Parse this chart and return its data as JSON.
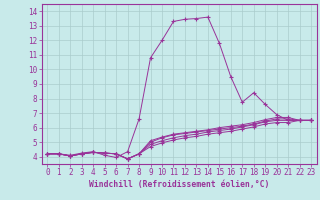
{
  "xlabel": "Windchill (Refroidissement éolien,°C)",
  "bg_color": "#c8eaea",
  "line_color": "#993399",
  "grid_color": "#aacccc",
  "xlim": [
    -0.5,
    23.5
  ],
  "ylim": [
    3.5,
    14.5
  ],
  "yticks": [
    4,
    5,
    6,
    7,
    8,
    9,
    10,
    11,
    12,
    13,
    14
  ],
  "xticks": [
    0,
    1,
    2,
    3,
    4,
    5,
    6,
    7,
    8,
    9,
    10,
    11,
    12,
    13,
    14,
    15,
    16,
    17,
    18,
    19,
    20,
    21,
    22,
    23
  ],
  "lines": [
    {
      "x": [
        0,
        1,
        2,
        3,
        4,
        5,
        6,
        7,
        8,
        9,
        10,
        11,
        12,
        13,
        14,
        15,
        16,
        17,
        18,
        19,
        20,
        21,
        22,
        23
      ],
      "y": [
        4.2,
        4.2,
        4.1,
        4.25,
        4.35,
        4.1,
        3.95,
        4.35,
        6.6,
        10.8,
        12.0,
        13.3,
        13.45,
        13.5,
        13.6,
        11.8,
        9.5,
        7.75,
        8.4,
        7.6,
        6.9,
        6.5,
        6.5,
        6.5
      ]
    },
    {
      "x": [
        0,
        1,
        2,
        3,
        4,
        5,
        6,
        7,
        8,
        9,
        10,
        11,
        12,
        13,
        14,
        15,
        16,
        17,
        18,
        19,
        20,
        21,
        22,
        23
      ],
      "y": [
        4.2,
        4.2,
        4.05,
        4.2,
        4.3,
        4.25,
        4.2,
        3.85,
        4.2,
        5.1,
        5.35,
        5.55,
        5.65,
        5.75,
        5.85,
        6.0,
        6.1,
        6.2,
        6.35,
        6.55,
        6.7,
        6.7,
        6.5,
        6.5
      ]
    },
    {
      "x": [
        0,
        1,
        2,
        3,
        4,
        5,
        6,
        7,
        8,
        9,
        10,
        11,
        12,
        13,
        14,
        15,
        16,
        17,
        18,
        19,
        20,
        21,
        22,
        23
      ],
      "y": [
        4.2,
        4.2,
        4.05,
        4.2,
        4.3,
        4.25,
        4.2,
        3.85,
        4.2,
        5.0,
        5.3,
        5.5,
        5.6,
        5.7,
        5.8,
        5.9,
        6.0,
        6.1,
        6.25,
        6.45,
        6.6,
        6.6,
        6.5,
        6.5
      ]
    },
    {
      "x": [
        0,
        1,
        2,
        3,
        4,
        5,
        6,
        7,
        8,
        9,
        10,
        11,
        12,
        13,
        14,
        15,
        16,
        17,
        18,
        19,
        20,
        21,
        22,
        23
      ],
      "y": [
        4.2,
        4.2,
        4.05,
        4.2,
        4.3,
        4.25,
        4.2,
        3.85,
        4.2,
        4.85,
        5.1,
        5.3,
        5.45,
        5.55,
        5.7,
        5.8,
        5.9,
        6.05,
        6.2,
        6.4,
        6.5,
        6.5,
        6.5,
        6.5
      ]
    },
    {
      "x": [
        0,
        1,
        2,
        3,
        4,
        5,
        6,
        7,
        8,
        9,
        10,
        11,
        12,
        13,
        14,
        15,
        16,
        17,
        18,
        19,
        20,
        21,
        22,
        23
      ],
      "y": [
        4.2,
        4.2,
        4.05,
        4.2,
        4.3,
        4.25,
        4.2,
        3.85,
        4.2,
        4.7,
        4.95,
        5.15,
        5.3,
        5.4,
        5.55,
        5.65,
        5.75,
        5.9,
        6.05,
        6.25,
        6.35,
        6.35,
        6.5,
        6.5
      ]
    }
  ],
  "marker": "+",
  "markersize": 2.5,
  "linewidth": 0.7,
  "tick_fontsize": 5.5,
  "xlabel_fontsize": 5.8
}
